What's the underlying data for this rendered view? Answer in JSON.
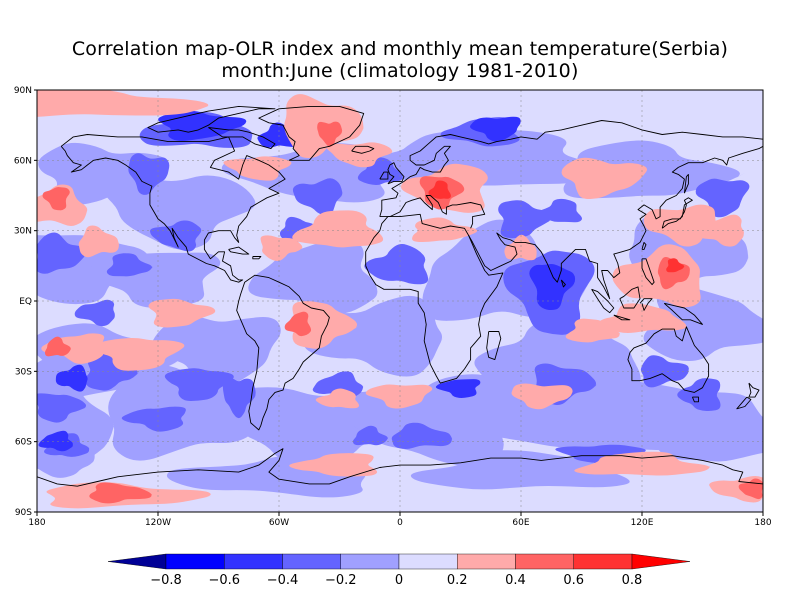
{
  "title": {
    "line1": "Correlation map-OLR index and monthly mean temperature(Serbia)",
    "line2": "month:June (climatology 1981-2010)"
  },
  "map": {
    "lon_ticks": [
      "180",
      "120W",
      "60W",
      "0",
      "60E",
      "120E",
      "180"
    ],
    "lat_ticks": [
      "90N",
      "60N",
      "30N",
      "EQ",
      "30S",
      "60S",
      "90S"
    ],
    "neutral_color": "#dcdcff"
  },
  "colorbar": {
    "labels": [
      "-0.8",
      "-0.6",
      "-0.4",
      "-0.2",
      "0",
      "0.2",
      "0.4",
      "0.6",
      "0.8"
    ],
    "colors": [
      "#000096",
      "#0000ff",
      "#3232ff",
      "#6464ff",
      "#a0a0ff",
      "#dcdcff",
      "#ffaaaa",
      "#ff6464",
      "#ff3232",
      "#ff0000"
    ]
  }
}
